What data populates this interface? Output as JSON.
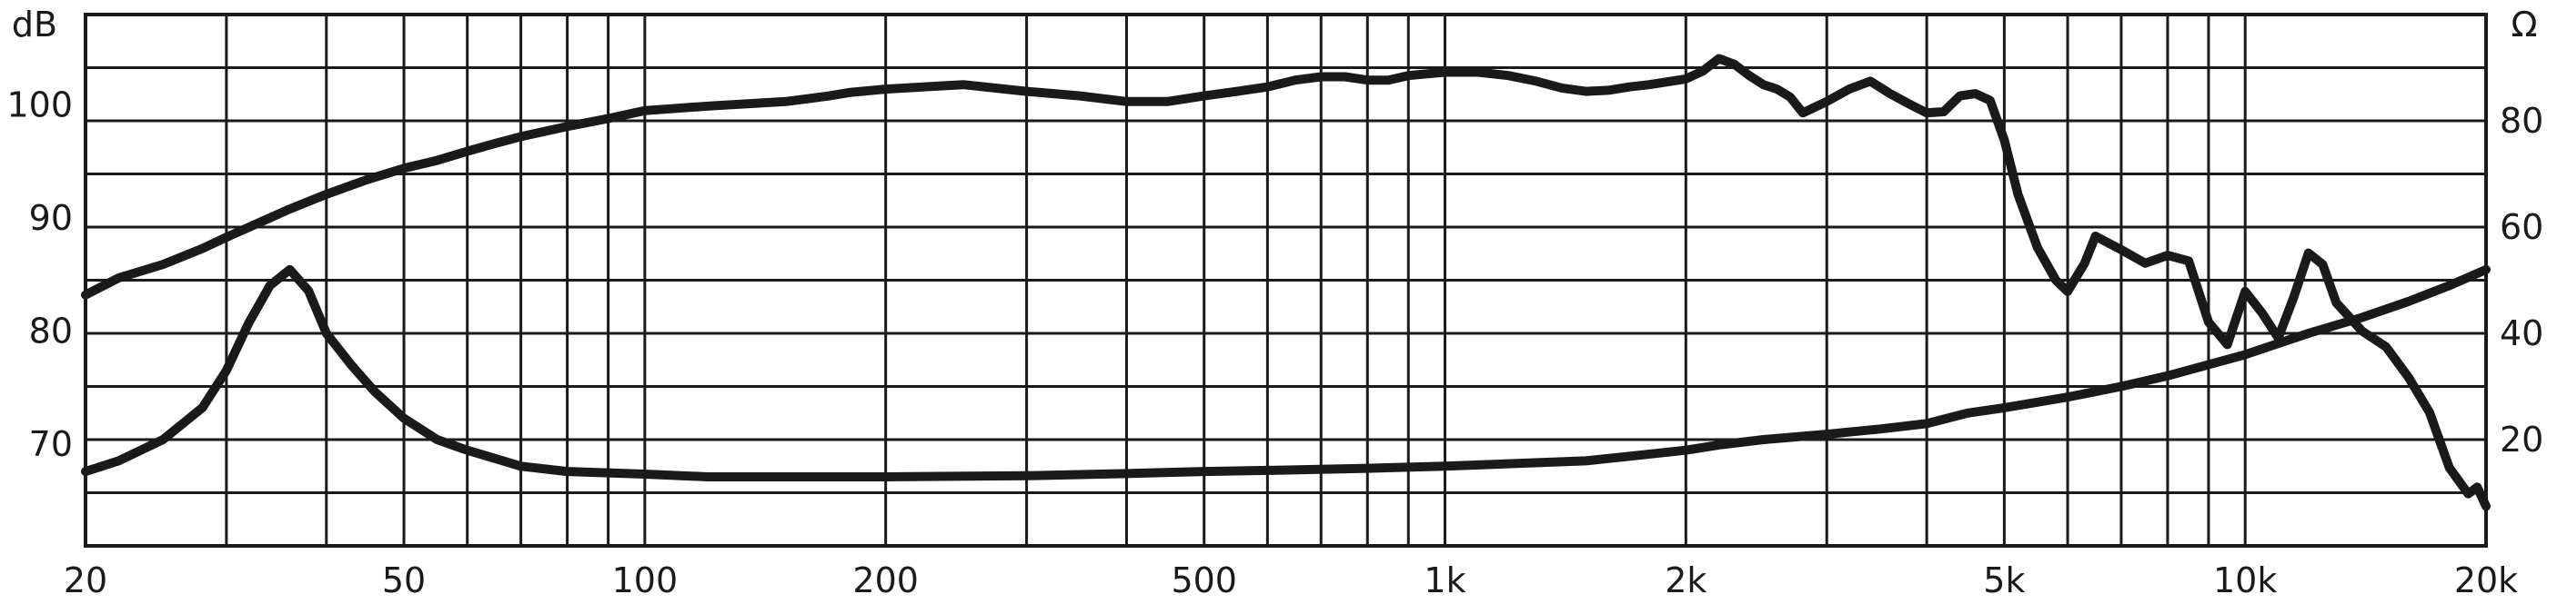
{
  "chart_data": {
    "type": "line",
    "title": "",
    "x_scale": "log",
    "xlim": [
      20,
      20000
    ],
    "ylim_left": [
      61,
      108
    ],
    "ylim_right": [
      0,
      100
    ],
    "grid": true,
    "left_unit": "dB",
    "right_unit": "Ω",
    "x_ticks": [
      {
        "value": 20,
        "label": "20"
      },
      {
        "value": 50,
        "label": "50"
      },
      {
        "value": 100,
        "label": "100"
      },
      {
        "value": 200,
        "label": "200"
      },
      {
        "value": 500,
        "label": "500"
      },
      {
        "value": 1000,
        "label": "1k"
      },
      {
        "value": 2000,
        "label": "2k"
      },
      {
        "value": 5000,
        "label": "5k"
      },
      {
        "value": 10000,
        "label": "10k"
      },
      {
        "value": 20000,
        "label": "20k"
      }
    ],
    "y_ticks_left": [
      {
        "value": 70,
        "label": "70"
      },
      {
        "value": 80,
        "label": "80"
      },
      {
        "value": 90,
        "label": "90"
      },
      {
        "value": 100,
        "label": "100"
      }
    ],
    "y_ticks_right": [
      {
        "value": 20,
        "label": "20"
      },
      {
        "value": 40,
        "label": "40"
      },
      {
        "value": 60,
        "label": "60"
      },
      {
        "value": 80,
        "label": "80"
      }
    ],
    "series": [
      {
        "axis": "left",
        "x": [
          20,
          22,
          25,
          28,
          30,
          33,
          36,
          40,
          45,
          50,
          55,
          60,
          65,
          70,
          80,
          90,
          100,
          120,
          150,
          170,
          180,
          200,
          250,
          300,
          350,
          400,
          450,
          500,
          550,
          600,
          650,
          700,
          750,
          800,
          850,
          900,
          1000,
          1100,
          1200,
          1300,
          1400,
          1500,
          1600,
          1700,
          1800,
          2000,
          2100,
          2200,
          2300,
          2400,
          2500,
          2600,
          2700,
          2800,
          3000,
          3200,
          3400,
          3600,
          3800,
          4000,
          4200,
          4400,
          4600,
          4800,
          5000,
          5200,
          5500,
          5800,
          6000,
          6300,
          6500,
          7000,
          7500,
          8000,
          8500,
          9000,
          9500,
          10000,
          10500,
          11000,
          11500,
          12000,
          12500,
          13000,
          14000,
          15000,
          16000,
          17000,
          18000,
          19000,
          19500,
          20000
        ],
        "y": [
          83.2,
          84.7,
          85.9,
          87.3,
          88.3,
          89.6,
          90.8,
          92.1,
          93.4,
          94.4,
          95.1,
          95.9,
          96.6,
          97.2,
          98.1,
          98.8,
          99.5,
          99.9,
          100.3,
          100.8,
          101.1,
          101.4,
          101.8,
          101.2,
          100.8,
          100.3,
          100.3,
          100.8,
          101.2,
          101.6,
          102.2,
          102.5,
          102.5,
          102.2,
          102.2,
          102.6,
          102.9,
          102.9,
          102.6,
          102.1,
          101.5,
          101.2,
          101.3,
          101.6,
          101.8,
          102.3,
          103.0,
          104.1,
          103.6,
          102.6,
          101.8,
          101.4,
          100.7,
          99.3,
          100.3,
          101.4,
          102.1,
          101.0,
          100.1,
          99.3,
          99.4,
          100.8,
          101.0,
          100.4,
          96.9,
          92.1,
          87.4,
          84.5,
          83.5,
          86.0,
          88.4,
          87.2,
          86.0,
          86.7,
          86.2,
          80.8,
          78.8,
          83.5,
          81.6,
          79.4,
          83.0,
          86.9,
          85.9,
          82.5,
          80.0,
          78.6,
          75.9,
          72.8,
          67.9,
          65.6,
          66.2,
          64.5
        ]
      },
      {
        "axis": "right",
        "x": [
          20,
          22,
          25,
          28,
          30,
          32,
          34,
          36,
          38,
          40,
          43,
          46,
          50,
          55,
          60,
          70,
          80,
          100,
          120,
          150,
          200,
          300,
          400,
          500,
          600,
          800,
          1000,
          1500,
          2000,
          2200,
          2500,
          3000,
          3500,
          4000,
          4500,
          5000,
          6000,
          7000,
          8000,
          10000,
          12000,
          14000,
          16000,
          18000,
          20000
        ],
        "y": [
          14,
          16,
          20,
          26,
          33,
          42,
          49,
          52,
          48,
          40,
          34,
          29,
          24,
          20,
          18,
          15,
          14,
          13.5,
          13,
          13,
          13,
          13.2,
          13.6,
          14,
          14.2,
          14.6,
          15,
          16,
          18,
          19,
          20,
          21,
          22,
          23,
          25,
          26,
          28,
          30,
          32,
          36,
          40,
          43,
          46,
          49,
          52
        ]
      }
    ]
  }
}
